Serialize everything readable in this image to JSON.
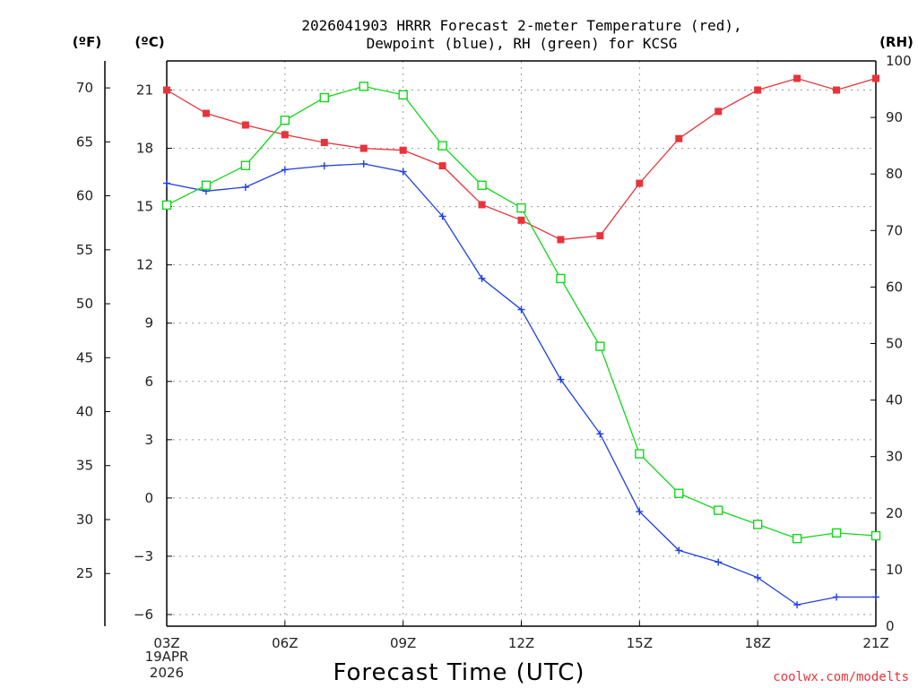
{
  "chart_data": {
    "type": "line",
    "title_lines": [
      "2026041903 HRRR Forecast 2-meter Temperature (red),",
      "Dewpoint (blue), RH (green) for KCSG"
    ],
    "xlabel": "Forecast Time (UTC)",
    "date_labels": [
      "19APR",
      "2026"
    ],
    "credit": "coolwx.com/modelts",
    "x_ticks": [
      "03Z",
      "06Z",
      "09Z",
      "12Z",
      "15Z",
      "18Z",
      "21Z"
    ],
    "x_tick_hours": [
      3,
      6,
      9,
      12,
      15,
      18,
      21
    ],
    "x_range": [
      3,
      21
    ],
    "celsius_axis": {
      "unit_label": "(ºC)",
      "range": [
        -6.6,
        22.5
      ],
      "ticks": [
        -6,
        -3,
        0,
        3,
        6,
        9,
        12,
        15,
        18,
        21
      ],
      "tick_labels": [
        "−6",
        "−3",
        "0",
        "3",
        "6",
        "9",
        "12",
        "15",
        "18",
        "21"
      ]
    },
    "fahrenheit_axis": {
      "unit_label": "(ºF)",
      "ticks": [
        25,
        30,
        35,
        40,
        45,
        50,
        55,
        60,
        65,
        70
      ],
      "tick_labels": [
        "25",
        "30",
        "35",
        "40",
        "45",
        "50",
        "55",
        "60",
        "65",
        "70"
      ]
    },
    "rh_axis": {
      "unit_label": "(RH)",
      "range": [
        0,
        100
      ],
      "ticks": [
        0,
        10,
        20,
        30,
        40,
        50,
        60,
        70,
        80,
        90,
        100
      ],
      "tick_labels": [
        "0",
        "10",
        "20",
        "30",
        "40",
        "50",
        "60",
        "70",
        "80",
        "90",
        "100"
      ]
    },
    "x": [
      3,
      4,
      5,
      6,
      7,
      8,
      9,
      10,
      11,
      12,
      13,
      14,
      15,
      16,
      17,
      18,
      19,
      20,
      21
    ],
    "series": [
      {
        "name": "2-meter Temperature",
        "axis": "celsius",
        "color": "#e8333a",
        "marker": "filled-square",
        "values": [
          21.0,
          19.8,
          19.2,
          18.7,
          18.3,
          18.0,
          17.9,
          17.1,
          15.1,
          14.3,
          13.3,
          13.5,
          16.2,
          18.5,
          19.9,
          21.0,
          21.6,
          21.0,
          21.6
        ]
      },
      {
        "name": "Dewpoint",
        "axis": "celsius",
        "color": "#1f3fe0",
        "marker": "plus",
        "values": [
          16.2,
          15.8,
          16.0,
          16.9,
          17.1,
          17.2,
          16.8,
          14.5,
          11.3,
          9.7,
          6.1,
          3.3,
          -0.7,
          -2.7,
          -3.3,
          -4.1,
          -5.5,
          -5.1,
          -5.1
        ]
      },
      {
        "name": "Relative Humidity",
        "axis": "rh",
        "color": "#12d61c",
        "marker": "open-square",
        "values": [
          74.5,
          78.0,
          81.5,
          89.5,
          93.5,
          95.5,
          94.0,
          85.0,
          78.0,
          74.0,
          61.5,
          49.5,
          30.5,
          23.5,
          20.5,
          18.0,
          15.5,
          16.5,
          16.0
        ]
      }
    ],
    "grid": true
  }
}
